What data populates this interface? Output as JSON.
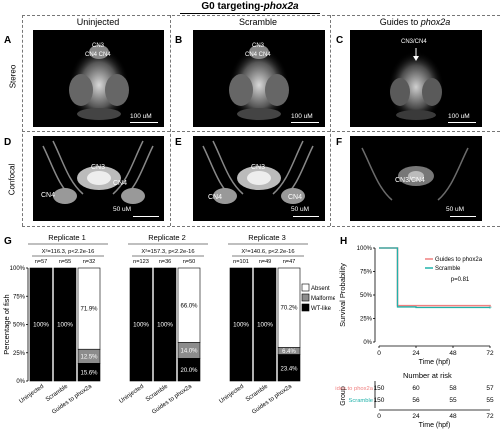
{
  "figure_title": "G0 targeting-",
  "figure_title_gene": "phox2a",
  "columns": {
    "uninjected": "Uninjected",
    "scramble": "Scramble",
    "guides_prefix": "Guides to ",
    "guides_gene": "phox2a"
  },
  "rows": {
    "stereo": "Stereo",
    "confocal": "Confocal"
  },
  "panels": {
    "A": {
      "letter": "A",
      "labels": [
        "CN3",
        "CN4 CN4"
      ],
      "scale": "100 uM"
    },
    "B": {
      "letter": "B",
      "labels": [
        "CN3",
        "CN4 CN4"
      ],
      "scale": "100 uM"
    },
    "C": {
      "letter": "C",
      "labels": [
        "CN3/CN4"
      ],
      "scale": "100 uM"
    },
    "D": {
      "letter": "D",
      "labels": [
        "CN3",
        "CN4",
        "CN4"
      ],
      "scale": "50 uM"
    },
    "E": {
      "letter": "E",
      "labels": [
        "CN3",
        "CN4",
        "CN4"
      ],
      "scale": "50 uM"
    },
    "F": {
      "letter": "F",
      "labels": [
        "CN3/CN4"
      ],
      "scale": "50 uM"
    },
    "G": {
      "letter": "G"
    },
    "H": {
      "letter": "H"
    }
  },
  "chart_data": [
    {
      "type": "bar",
      "stacked": true,
      "ylabel": "Percentage of fish",
      "ylim": [
        0,
        100
      ],
      "yticks": [
        "0%",
        "25%",
        "50%",
        "75%",
        "100%"
      ],
      "legend": {
        "position": "right",
        "entries": [
          "Absent",
          "Malformed",
          "WT-like"
        ]
      },
      "colors": {
        "Absent": "#ffffff",
        "Malformed": "#8c8c8c",
        "WT-like": "#000000"
      },
      "replicates": [
        {
          "name": "Replicate 1",
          "stat": "X²=116.3, p<2.2e-16",
          "categories": [
            "Uninjected",
            "Scramble",
            "Guides to phox2a"
          ],
          "n": [
            "n=57",
            "n=55",
            "n=32"
          ],
          "wt_like": [
            100,
            100,
            15.6
          ],
          "malformed": [
            0,
            0,
            12.5
          ],
          "absent": [
            0,
            0,
            71.9
          ],
          "labels": [
            [
              "100%"
            ],
            [
              "100%"
            ],
            [
              "71.9%",
              "12.5%",
              "15.6%"
            ]
          ]
        },
        {
          "name": "Replicate 2",
          "stat": "X²=157.3, p<2.2e-16",
          "categories": [
            "Uninjected",
            "Scramble",
            "Guides to phox2a"
          ],
          "n": [
            "n=123",
            "n=36",
            "n=50"
          ],
          "wt_like": [
            100,
            100,
            20.0
          ],
          "malformed": [
            0,
            0,
            14.0
          ],
          "absent": [
            0,
            0,
            66.0
          ],
          "labels": [
            [
              "100%"
            ],
            [
              "100%"
            ],
            [
              "66.0%",
              "14.0%",
              "20.0%"
            ]
          ]
        },
        {
          "name": "Replicate 3",
          "stat": "X²=140.6, p<2.2e-16",
          "categories": [
            "Uninjected",
            "Scramble",
            "Guides to phox2a"
          ],
          "n": [
            "n=101",
            "n=49",
            "n=47"
          ],
          "wt_like": [
            100,
            100,
            23.4
          ],
          "malformed": [
            0,
            0,
            6.4
          ],
          "absent": [
            0,
            0,
            70.2
          ],
          "labels": [
            [
              "100%"
            ],
            [
              "100%"
            ],
            [
              "70.2%",
              "6.4%",
              "23.4%"
            ]
          ]
        }
      ]
    },
    {
      "type": "line",
      "step": true,
      "xlabel": "Time (hpf)",
      "ylabel": "Survival Probability",
      "xlim": [
        0,
        72
      ],
      "ylim": [
        0,
        100
      ],
      "xticks": [
        0,
        24,
        48,
        72
      ],
      "yticks": [
        "0%",
        "25%",
        "50%",
        "75%",
        "100%"
      ],
      "annotation": "p=0.81",
      "legend": {
        "position": "top-right"
      },
      "series": [
        {
          "name": "Guides to phox2a",
          "color": "#f08080",
          "x": [
            0,
            12,
            12,
            24,
            48,
            72
          ],
          "y": [
            100,
            100,
            38.7,
            38.7,
            38.7,
            38.0
          ]
        },
        {
          "name": "Scramble",
          "color": "#20b2aa",
          "x": [
            0,
            12,
            12,
            24,
            48,
            72
          ],
          "y": [
            100,
            100,
            37.3,
            36.7,
            36.7,
            36.7
          ]
        }
      ],
      "risk_table": {
        "title": "Number at risk",
        "ylabel": "Group",
        "xlabel": "Time (hpf)",
        "rows": [
          {
            "name": "Guides to phox2a",
            "values": [
              150,
              60,
              58,
              57
            ]
          },
          {
            "name": "Scramble",
            "values": [
              150,
              56,
              55,
              55
            ]
          }
        ]
      }
    }
  ]
}
